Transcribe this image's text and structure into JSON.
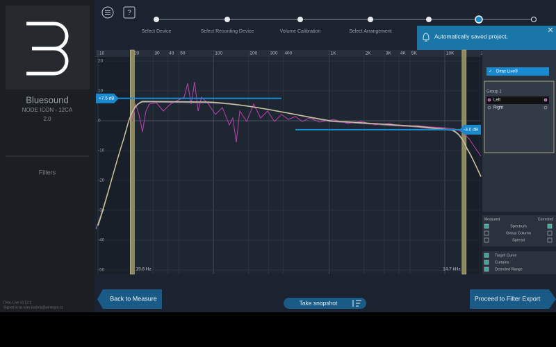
{
  "sidebar": {
    "brand": "Bluesound",
    "model": "NODE ICON - 12CA",
    "version": "2.0",
    "section": "Filters",
    "app_version": "Dirac Live v3.12.1",
    "signed_in": "Signed in as ivan.kachris@wintegra.cz"
  },
  "help": "?",
  "steps": [
    "Select Device",
    "Select Recording Device",
    "Volume Calibration",
    "Select Arrangement"
  ],
  "notification": "Automatically saved project.",
  "graph": {
    "xlim": [
      10,
      20000
    ],
    "ylim": [
      -50,
      20
    ],
    "xticks": [
      10,
      20,
      30,
      40,
      50,
      100,
      200,
      300,
      400,
      {
        "value": 1000,
        "label": "1K"
      },
      {
        "value": 2000,
        "label": "2K"
      },
      {
        "value": 3000,
        "label": "3K"
      },
      {
        "value": 4000,
        "label": "4K"
      },
      {
        "value": 5000,
        "label": "5K"
      },
      {
        "value": 10000,
        "label": "10K"
      },
      {
        "value": 20000,
        "label": "20K"
      }
    ],
    "yticks": [
      20,
      10,
      0,
      -10,
      -20,
      -30,
      -40,
      -50
    ],
    "target_levels": [
      {
        "value": 7.5,
        "label": "+7.5 dB"
      },
      {
        "value": -3.0,
        "label": "-3.0 dB"
      }
    ],
    "curtains": [
      {
        "value": 19.8,
        "label": "19.8 Hz"
      },
      {
        "value": 14700,
        "label": "14.7 kHz"
      }
    ]
  },
  "panel": {
    "product": "Dirac Live®",
    "group": "Group 1",
    "channels": [
      "Left",
      "Right"
    ],
    "measured": "Measured",
    "corrected": "Corrected",
    "display_options": [
      "Spectrum",
      "Group Column",
      "Spread"
    ],
    "overlays": [
      "Target Curve",
      "Curtains",
      "Detected Range"
    ]
  },
  "buttons": {
    "back": "Back to Measure",
    "snapshot": "Take snapshot",
    "proceed": "Proceed to Filter Export"
  }
}
